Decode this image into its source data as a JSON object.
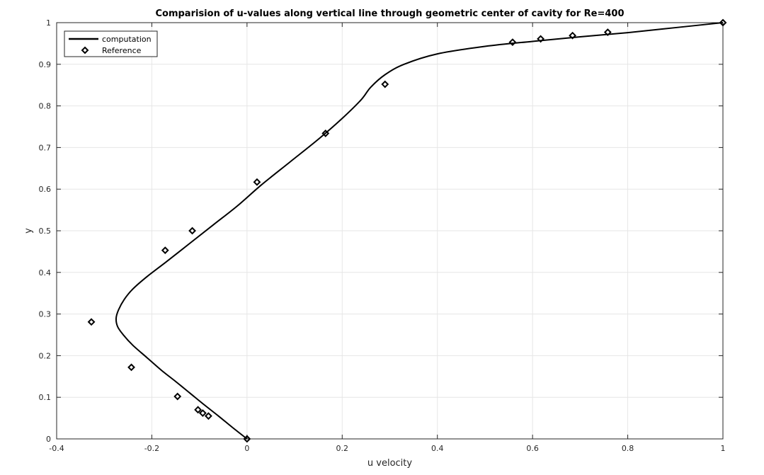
{
  "chart_data": {
    "type": "line",
    "title": "Comparision of u-values along vertical line through geometric center of cavity for Re=400",
    "xlabel": "u velocity",
    "ylabel": "y",
    "xlim": [
      -0.4,
      1
    ],
    "ylim": [
      0,
      1
    ],
    "x_ticks": [
      "-0.4",
      "-0.2",
      "0",
      "0.2",
      "0.4",
      "0.6",
      "0.8",
      "1"
    ],
    "y_ticks": [
      "0",
      "0.1",
      "0.2",
      "0.3",
      "0.4",
      "0.5",
      "0.6",
      "0.7",
      "0.8",
      "0.9",
      "1"
    ],
    "grid": true,
    "legend_position": "top-left",
    "series": [
      {
        "name": "computation",
        "style": "line",
        "color": "#000000",
        "x": [
          0,
          -0.03,
          -0.06,
          -0.09,
          -0.12,
          -0.15,
          -0.18,
          -0.21,
          -0.24,
          -0.26,
          -0.272,
          -0.275,
          -0.27,
          -0.258,
          -0.24,
          -0.21,
          -0.17,
          -0.12,
          -0.07,
          -0.02,
          0.03,
          0.09,
          0.15,
          0.2,
          0.24,
          0.26,
          0.29,
          0.33,
          0.4,
          0.5,
          0.6,
          0.7,
          0.8,
          0.9,
          1.0
        ],
        "y": [
          0,
          0.027,
          0.055,
          0.082,
          0.11,
          0.138,
          0.165,
          0.195,
          0.225,
          0.25,
          0.27,
          0.29,
          0.31,
          0.335,
          0.36,
          0.39,
          0.425,
          0.47,
          0.515,
          0.56,
          0.61,
          0.665,
          0.72,
          0.77,
          0.815,
          0.845,
          0.875,
          0.9,
          0.925,
          0.943,
          0.955,
          0.966,
          0.976,
          0.988,
          1.0
        ]
      },
      {
        "name": "Reference",
        "style": "markers",
        "marker": "diamond",
        "color": "#000000",
        "x": [
          0,
          -0.081,
          -0.093,
          -0.103,
          -0.146,
          -0.243,
          -0.327,
          -0.172,
          -0.115,
          0.021,
          0.165,
          0.29,
          0.558,
          0.617,
          0.684,
          0.758,
          1.0
        ],
        "y": [
          0,
          0.055,
          0.062,
          0.07,
          0.102,
          0.172,
          0.281,
          0.453,
          0.5,
          0.617,
          0.734,
          0.852,
          0.953,
          0.961,
          0.969,
          0.977,
          1.0
        ]
      }
    ]
  }
}
